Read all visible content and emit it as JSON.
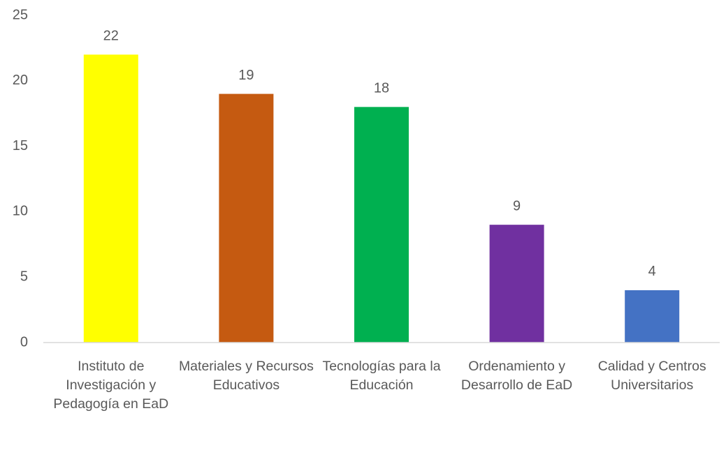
{
  "chart_data": {
    "type": "bar",
    "categories": [
      "Instituto de Investigación y Pedagogía en EaD",
      "Materiales y Recursos Educativos",
      "Tecnologías para la Educación",
      "Ordenamiento y Desarrollo de EaD",
      "Calidad y Centros Universitarios"
    ],
    "values": [
      22,
      19,
      18,
      9,
      4
    ],
    "colors": [
      "#ffff00",
      "#c55a11",
      "#00b050",
      "#7030a0",
      "#4472c4"
    ],
    "ylim": [
      0,
      25
    ],
    "yticks": [
      0,
      5,
      10,
      15,
      20,
      25
    ],
    "grid": false
  }
}
